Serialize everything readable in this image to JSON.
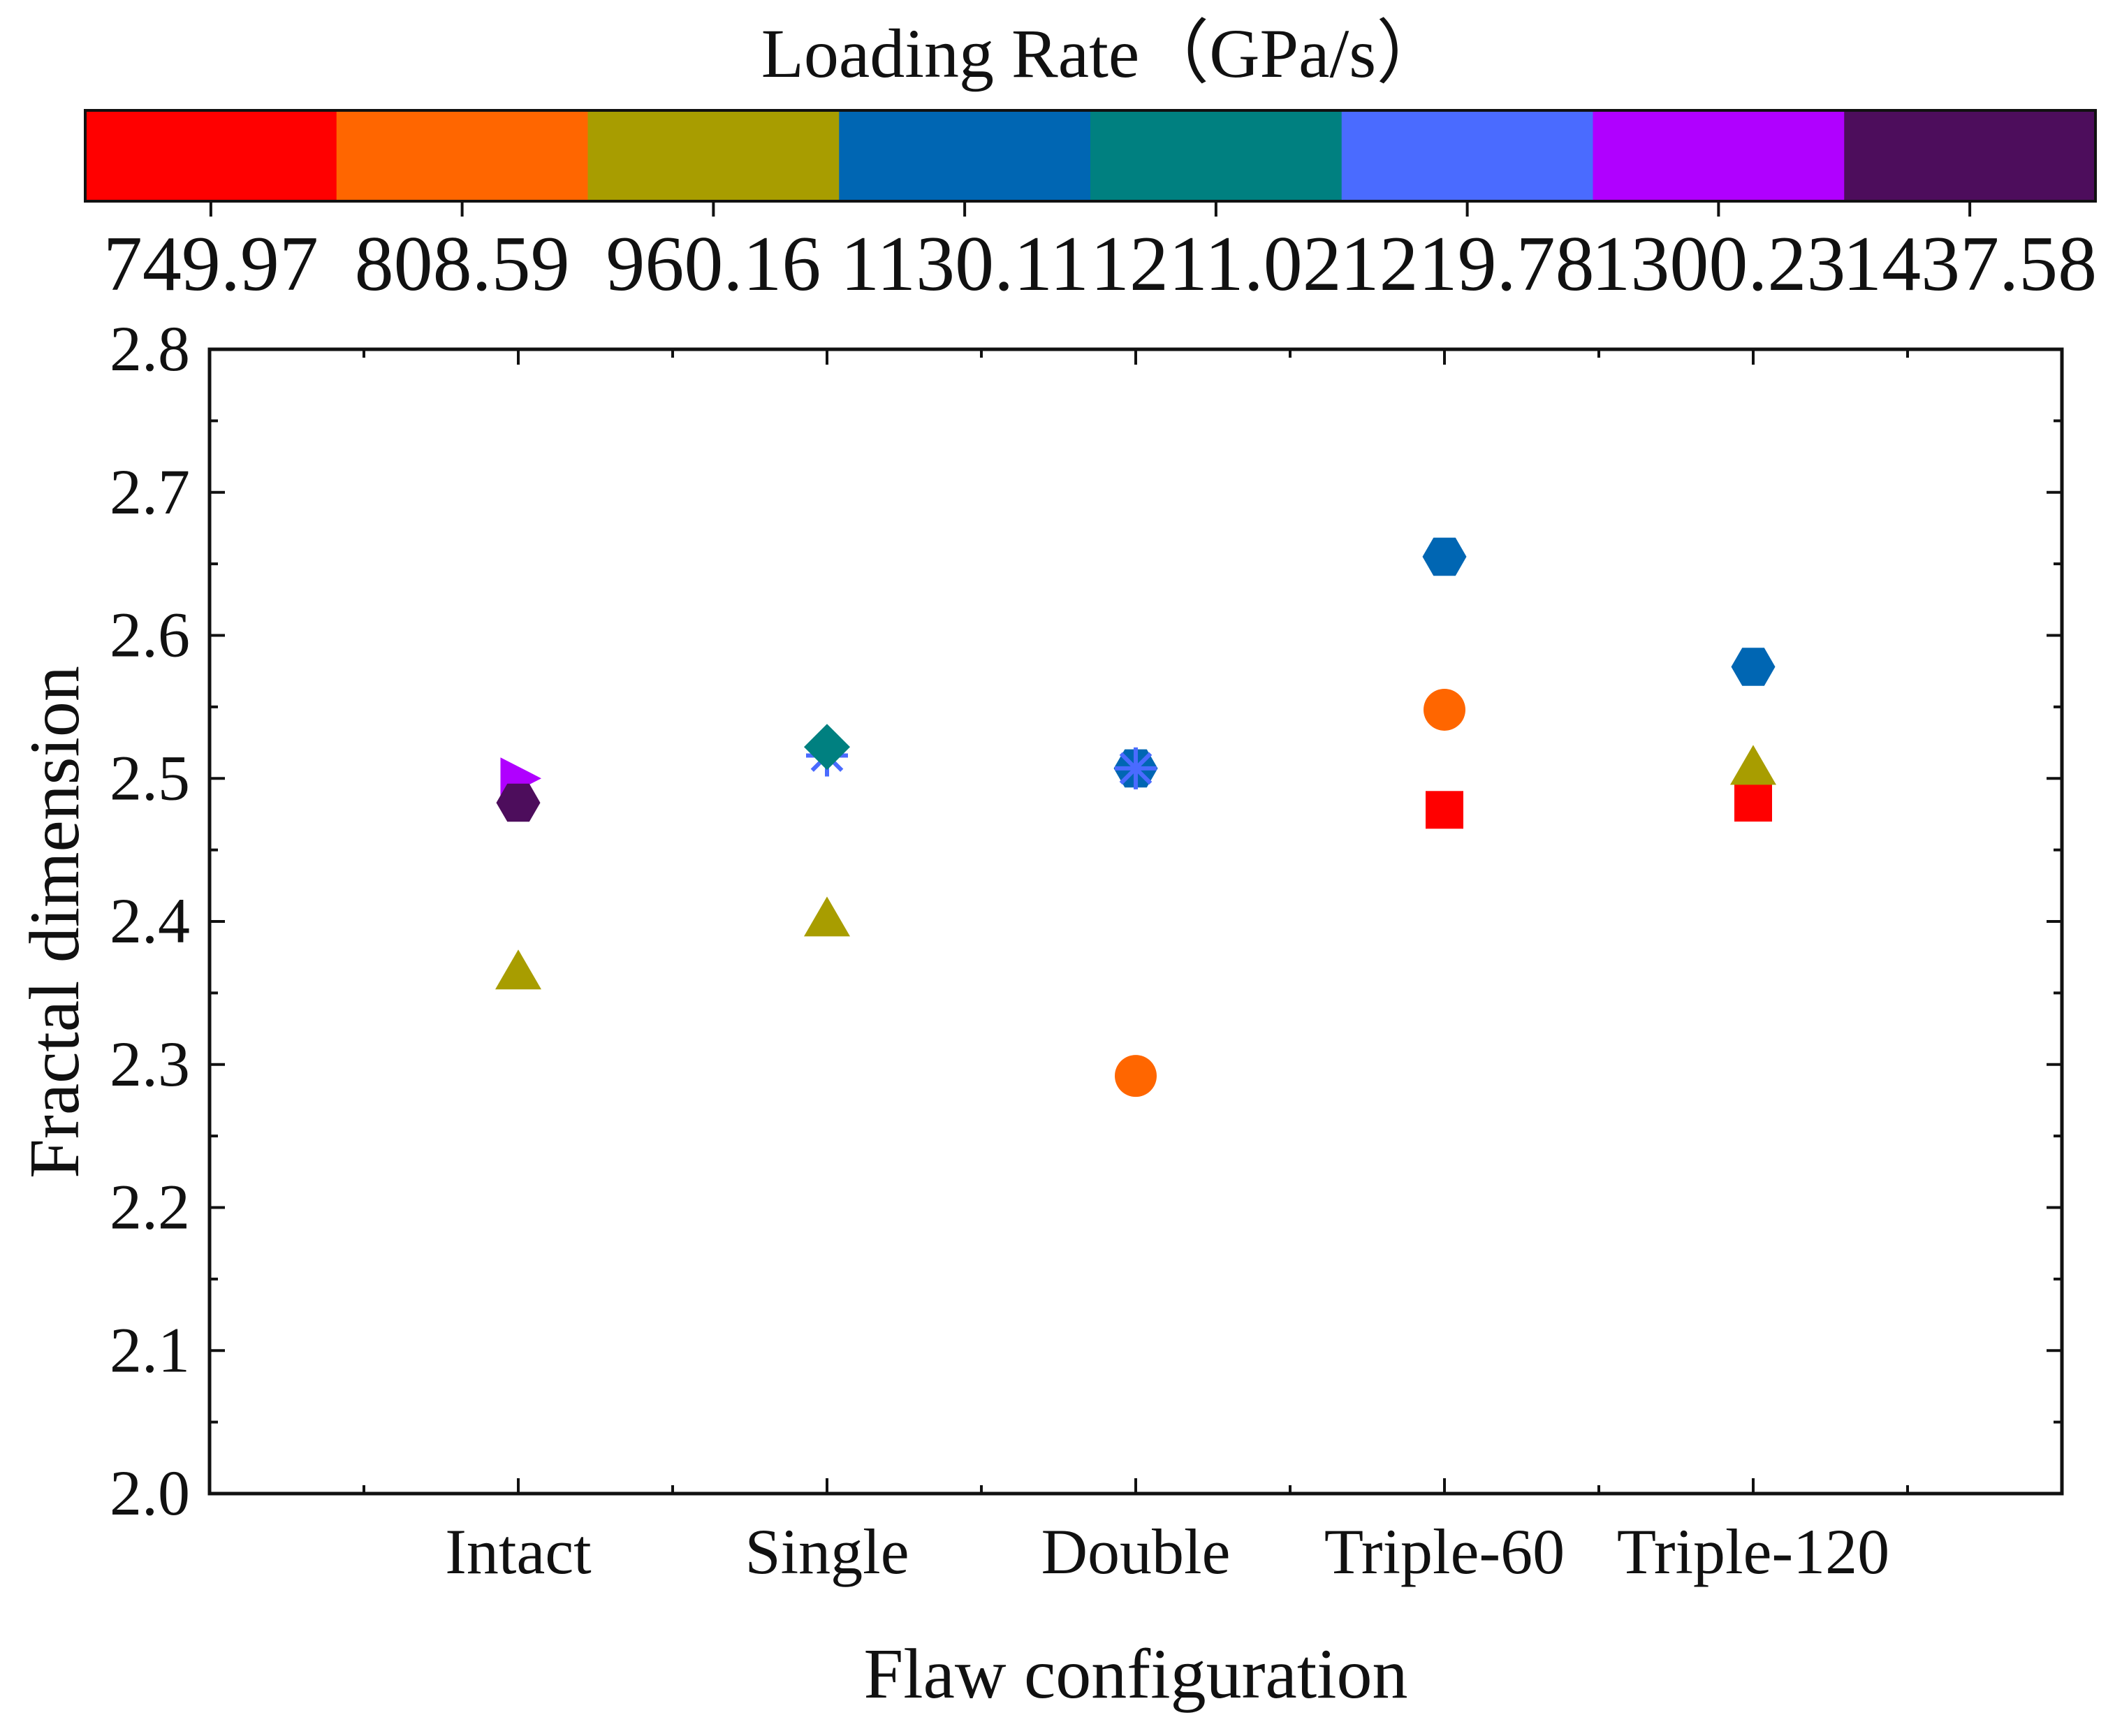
{
  "chart_data": {
    "type": "scatter",
    "title": "Loading Rate（GPa/s）",
    "xlabel": "Flaw configuration",
    "ylabel": "Fractal dimension",
    "ylim": [
      2.0,
      2.8
    ],
    "yticks": [
      "2.0",
      "2.1",
      "2.2",
      "2.3",
      "2.4",
      "2.5",
      "2.6",
      "2.7",
      "2.8"
    ],
    "categories": [
      "Intact",
      "Single",
      "Double",
      "Triple-60",
      "Triple-120"
    ],
    "colorbar": {
      "levels": [
        {
          "label": "749.97",
          "color": "#ff0000"
        },
        {
          "label": "808.59",
          "color": "#ff6600"
        },
        {
          "label": "960.16",
          "color": "#a89d00"
        },
        {
          "label": "1130.11",
          "color": "#0066b3"
        },
        {
          "label": "1211.02",
          "color": "#008080"
        },
        {
          "label": "1219.78",
          "color": "#4a6bff"
        },
        {
          "label": "1300.23",
          "color": "#b000ff"
        },
        {
          "label": "1437.58",
          "color": "#4d0d5c"
        }
      ]
    },
    "points": [
      {
        "category": "Intact",
        "value": 2.365,
        "rate": "960.16",
        "marker": "triangle",
        "color": "#a89d00"
      },
      {
        "category": "Intact",
        "value": 2.5,
        "rate": "1300.23",
        "marker": "triangle-right",
        "color": "#b000ff"
      },
      {
        "category": "Intact",
        "value": 2.483,
        "rate": "1437.58",
        "marker": "hexagon",
        "color": "#4d0d5c"
      },
      {
        "category": "Single",
        "value": 2.402,
        "rate": "960.16",
        "marker": "triangle",
        "color": "#a89d00"
      },
      {
        "category": "Single",
        "value": 2.516,
        "rate": "1219.78",
        "marker": "star",
        "color": "#4a6bff"
      },
      {
        "category": "Single",
        "value": 2.522,
        "rate": "1211.02",
        "marker": "diamond",
        "color": "#008080"
      },
      {
        "category": "Double",
        "value": 2.292,
        "rate": "808.59",
        "marker": "circle",
        "color": "#ff6600"
      },
      {
        "category": "Double",
        "value": 2.507,
        "rate": "1130.11",
        "marker": "hexagon",
        "color": "#0066b3"
      },
      {
        "category": "Double",
        "value": 2.507,
        "rate": "1219.78",
        "marker": "star",
        "color": "#4a6bff"
      },
      {
        "category": "Triple-60",
        "value": 2.478,
        "rate": "749.97",
        "marker": "square",
        "color": "#ff0000"
      },
      {
        "category": "Triple-60",
        "value": 2.548,
        "rate": "808.59",
        "marker": "circle",
        "color": "#ff6600"
      },
      {
        "category": "Triple-60",
        "value": 2.655,
        "rate": "1130.11",
        "marker": "hexagon",
        "color": "#0066b3"
      },
      {
        "category": "Triple-120",
        "value": 2.483,
        "rate": "749.97",
        "marker": "square",
        "color": "#ff0000"
      },
      {
        "category": "Triple-120",
        "value": 2.508,
        "rate": "960.16",
        "marker": "triangle",
        "color": "#a89d00"
      },
      {
        "category": "Triple-120",
        "value": 2.578,
        "rate": "1130.11",
        "marker": "hexagon",
        "color": "#0066b3"
      }
    ]
  }
}
